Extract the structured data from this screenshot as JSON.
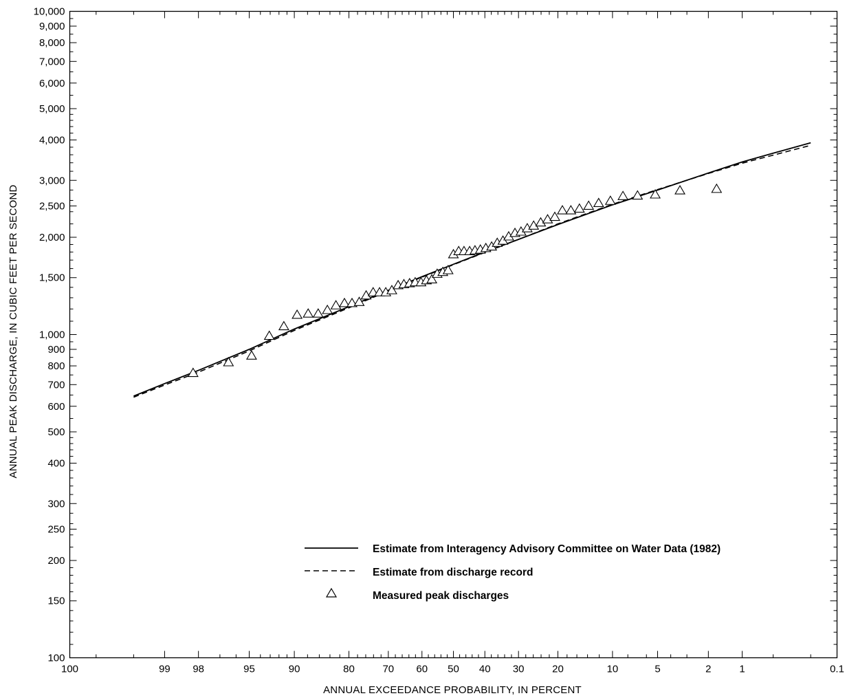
{
  "chart_data": {
    "type": "scatter",
    "xlabel": "ANNUAL EXCEEDANCE PROBABILITY, IN PERCENT",
    "ylabel": "ANNUAL PEAK DISCHARGE, IN CUBIC FEET PER SECOND",
    "x_scale": "normal-probability (reversed)",
    "y_scale": "log",
    "xlim": [
      99.9,
      0.1
    ],
    "ylim": [
      100,
      10000
    ],
    "x_ticks": [
      {
        "value": 99.9,
        "label": "100"
      },
      {
        "value": 99,
        "label": "99"
      },
      {
        "value": 98,
        "label": "98"
      },
      {
        "value": 95,
        "label": "95"
      },
      {
        "value": 90,
        "label": "90"
      },
      {
        "value": 80,
        "label": "80"
      },
      {
        "value": 70,
        "label": "70"
      },
      {
        "value": 60,
        "label": "60"
      },
      {
        "value": 50,
        "label": "50"
      },
      {
        "value": 40,
        "label": "40"
      },
      {
        "value": 30,
        "label": "30"
      },
      {
        "value": 20,
        "label": "20"
      },
      {
        "value": 10,
        "label": "10"
      },
      {
        "value": 5,
        "label": "5"
      },
      {
        "value": 2,
        "label": "2"
      },
      {
        "value": 1,
        "label": "1"
      },
      {
        "value": 0.1,
        "label": "0.1"
      }
    ],
    "x_minor_ticks": [
      99.8,
      99.5,
      97,
      96,
      94,
      93,
      92,
      91,
      88,
      86,
      84,
      82,
      78,
      76,
      74,
      72,
      68,
      66,
      64,
      62,
      58,
      56,
      54,
      52,
      48,
      46,
      44,
      42,
      38,
      36,
      34,
      32,
      28,
      26,
      24,
      22,
      18,
      16,
      14,
      12,
      8,
      6,
      4,
      3,
      0.5,
      0.2
    ],
    "y_ticks": [
      {
        "value": 100,
        "label": "100"
      },
      {
        "value": 150,
        "label": "150"
      },
      {
        "value": 200,
        "label": "200"
      },
      {
        "value": 250,
        "label": "250"
      },
      {
        "value": 300,
        "label": "300"
      },
      {
        "value": 400,
        "label": "400"
      },
      {
        "value": 500,
        "label": "500"
      },
      {
        "value": 600,
        "label": "600"
      },
      {
        "value": 700,
        "label": "700"
      },
      {
        "value": 800,
        "label": "800"
      },
      {
        "value": 900,
        "label": "900"
      },
      {
        "value": 1000,
        "label": "1,000"
      },
      {
        "value": 1500,
        "label": "1,500"
      },
      {
        "value": 2000,
        "label": "2,000"
      },
      {
        "value": 2500,
        "label": "2,500"
      },
      {
        "value": 3000,
        "label": "3,000"
      },
      {
        "value": 4000,
        "label": "4,000"
      },
      {
        "value": 5000,
        "label": "5,000"
      },
      {
        "value": 6000,
        "label": "6,000"
      },
      {
        "value": 7000,
        "label": "7,000"
      },
      {
        "value": 8000,
        "label": "8,000"
      },
      {
        "value": 9000,
        "label": "9,000"
      },
      {
        "value": 10000,
        "label": "10,000"
      }
    ],
    "y_minor_ticks": [
      110,
      120,
      130,
      140,
      160,
      170,
      180,
      190,
      220,
      240,
      260,
      280,
      320,
      340,
      360,
      380,
      420,
      440,
      460,
      480,
      550,
      650,
      750,
      850,
      950,
      1100,
      1200,
      1300,
      1400,
      1600,
      1700,
      1800,
      1900,
      2200,
      2400,
      2600,
      2800,
      3200,
      3400,
      3600,
      3800,
      4200,
      4400,
      4600,
      4800,
      5500,
      6500,
      7500,
      8500,
      9500
    ],
    "series": [
      {
        "name": "Estimate from Interagency Advisory Committee on Water Data (1982)",
        "kind": "line",
        "style": "solid",
        "color": "#000000",
        "points": [
          {
            "x": 99.5,
            "y": 645
          },
          {
            "x": 99,
            "y": 705
          },
          {
            "x": 98,
            "y": 775
          },
          {
            "x": 95,
            "y": 900
          },
          {
            "x": 90,
            "y": 1040
          },
          {
            "x": 80,
            "y": 1220
          },
          {
            "x": 70,
            "y": 1370
          },
          {
            "x": 60,
            "y": 1510
          },
          {
            "x": 50,
            "y": 1650
          },
          {
            "x": 40,
            "y": 1800
          },
          {
            "x": 30,
            "y": 1970
          },
          {
            "x": 20,
            "y": 2190
          },
          {
            "x": 10,
            "y": 2520
          },
          {
            "x": 5,
            "y": 2800
          },
          {
            "x": 2,
            "y": 3160
          },
          {
            "x": 1,
            "y": 3420
          },
          {
            "x": 0.5,
            "y": 3640
          },
          {
            "x": 0.2,
            "y": 3920
          }
        ]
      },
      {
        "name": "Estimate from discharge record",
        "kind": "line",
        "style": "dashed",
        "color": "#000000",
        "points": [
          {
            "x": 99.5,
            "y": 640
          },
          {
            "x": 99,
            "y": 698
          },
          {
            "x": 98,
            "y": 765
          },
          {
            "x": 95,
            "y": 890
          },
          {
            "x": 90,
            "y": 1030
          },
          {
            "x": 80,
            "y": 1210
          },
          {
            "x": 70,
            "y": 1365
          },
          {
            "x": 60,
            "y": 1505
          },
          {
            "x": 50,
            "y": 1645
          },
          {
            "x": 40,
            "y": 1795
          },
          {
            "x": 30,
            "y": 1970
          },
          {
            "x": 20,
            "y": 2200
          },
          {
            "x": 10,
            "y": 2530
          },
          {
            "x": 5,
            "y": 2810
          },
          {
            "x": 2,
            "y": 3150
          },
          {
            "x": 1,
            "y": 3390
          },
          {
            "x": 0.5,
            "y": 3590
          },
          {
            "x": 0.2,
            "y": 3850
          }
        ]
      },
      {
        "name": "Measured peak discharges",
        "kind": "scatter",
        "marker": "triangle",
        "color": "#000000",
        "points": [
          {
            "x": 98.2,
            "y": 760
          },
          {
            "x": 96.5,
            "y": 820
          },
          {
            "x": 94.8,
            "y": 860
          },
          {
            "x": 93.1,
            "y": 990
          },
          {
            "x": 91.4,
            "y": 1060
          },
          {
            "x": 89.6,
            "y": 1150
          },
          {
            "x": 87.9,
            "y": 1160
          },
          {
            "x": 86.2,
            "y": 1160
          },
          {
            "x": 84.5,
            "y": 1190
          },
          {
            "x": 82.8,
            "y": 1230
          },
          {
            "x": 81.0,
            "y": 1250
          },
          {
            "x": 79.3,
            "y": 1250
          },
          {
            "x": 77.6,
            "y": 1260
          },
          {
            "x": 75.9,
            "y": 1320
          },
          {
            "x": 74.1,
            "y": 1350
          },
          {
            "x": 72.4,
            "y": 1350
          },
          {
            "x": 70.7,
            "y": 1350
          },
          {
            "x": 69.0,
            "y": 1370
          },
          {
            "x": 67.2,
            "y": 1420
          },
          {
            "x": 65.5,
            "y": 1430
          },
          {
            "x": 63.8,
            "y": 1440
          },
          {
            "x": 62.1,
            "y": 1450
          },
          {
            "x": 60.3,
            "y": 1450
          },
          {
            "x": 58.6,
            "y": 1470
          },
          {
            "x": 56.9,
            "y": 1480
          },
          {
            "x": 55.2,
            "y": 1540
          },
          {
            "x": 53.4,
            "y": 1560
          },
          {
            "x": 51.7,
            "y": 1580
          },
          {
            "x": 50.0,
            "y": 1770
          },
          {
            "x": 48.3,
            "y": 1810
          },
          {
            "x": 46.6,
            "y": 1810
          },
          {
            "x": 44.8,
            "y": 1810
          },
          {
            "x": 43.1,
            "y": 1820
          },
          {
            "x": 41.4,
            "y": 1830
          },
          {
            "x": 39.7,
            "y": 1850
          },
          {
            "x": 37.9,
            "y": 1870
          },
          {
            "x": 36.2,
            "y": 1920
          },
          {
            "x": 34.5,
            "y": 1950
          },
          {
            "x": 32.8,
            "y": 2010
          },
          {
            "x": 31.0,
            "y": 2060
          },
          {
            "x": 29.3,
            "y": 2080
          },
          {
            "x": 27.6,
            "y": 2130
          },
          {
            "x": 25.9,
            "y": 2170
          },
          {
            "x": 24.1,
            "y": 2220
          },
          {
            "x": 22.4,
            "y": 2270
          },
          {
            "x": 20.7,
            "y": 2310
          },
          {
            "x": 19.0,
            "y": 2420
          },
          {
            "x": 17.2,
            "y": 2420
          },
          {
            "x": 15.5,
            "y": 2450
          },
          {
            "x": 13.8,
            "y": 2500
          },
          {
            "x": 12.1,
            "y": 2550
          },
          {
            "x": 10.3,
            "y": 2590
          },
          {
            "x": 8.6,
            "y": 2680
          },
          {
            "x": 6.9,
            "y": 2690
          },
          {
            "x": 5.2,
            "y": 2710
          },
          {
            "x": 3.4,
            "y": 2790
          },
          {
            "x": 1.7,
            "y": 2820
          }
        ]
      }
    ],
    "legend": {
      "placement": "lower-right",
      "entries": [
        {
          "label": "Estimate from Interagency Advisory Committee on Water Data (1982)",
          "symbol": "solid-line"
        },
        {
          "label": "Estimate from discharge record",
          "symbol": "dashed-line"
        },
        {
          "label": "Measured peak discharges",
          "symbol": "triangle"
        }
      ]
    },
    "grid": false
  }
}
